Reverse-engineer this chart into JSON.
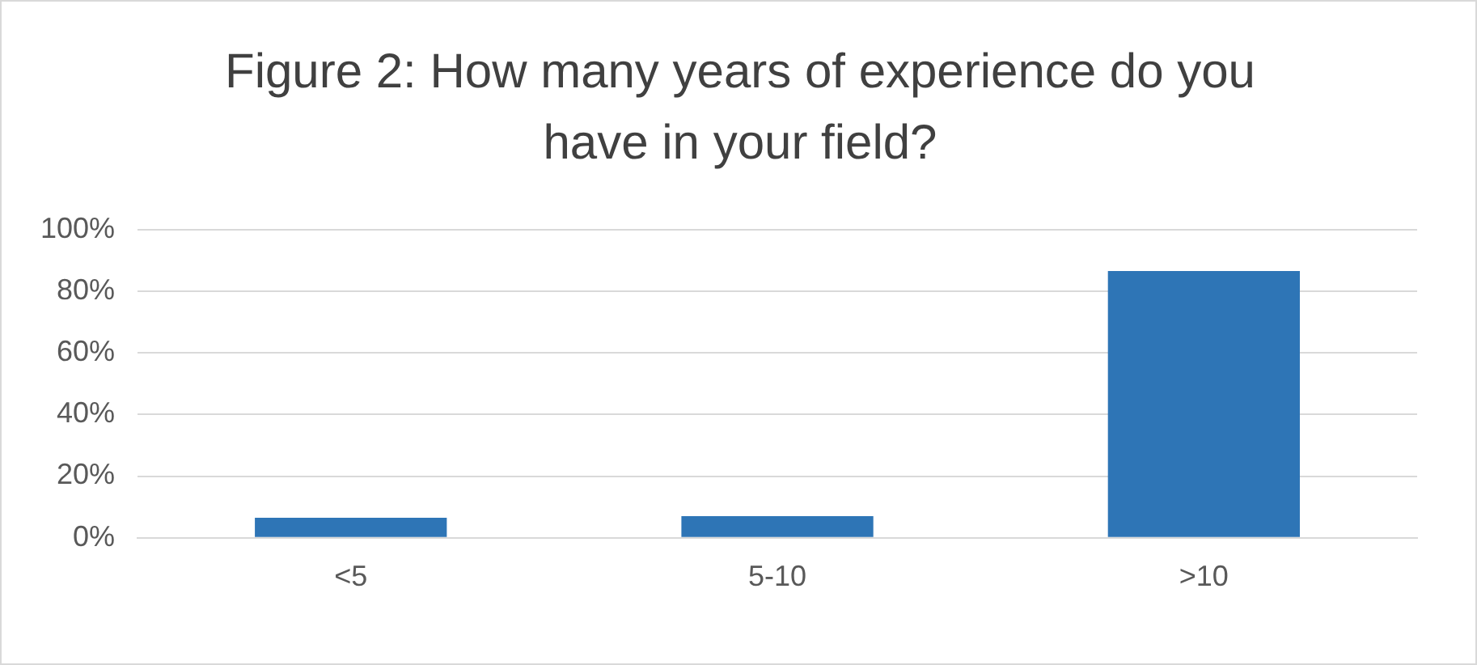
{
  "chart_data": {
    "type": "bar",
    "title": "Figure 2: How many years of experience do you have in your field?",
    "categories": [
      "<5",
      "5-10",
      ">10"
    ],
    "values": [
      6.5,
      7,
      86.5
    ],
    "color": "#2e75b6",
    "ylim": [
      0,
      100
    ],
    "yticks": [
      {
        "value": 0,
        "label": "0%"
      },
      {
        "value": 20,
        "label": "20%"
      },
      {
        "value": 40,
        "label": "40%"
      },
      {
        "value": 60,
        "label": "60%"
      },
      {
        "value": 80,
        "label": "80%"
      },
      {
        "value": 100,
        "label": "100%"
      }
    ],
    "grid": "y",
    "legend": false
  }
}
